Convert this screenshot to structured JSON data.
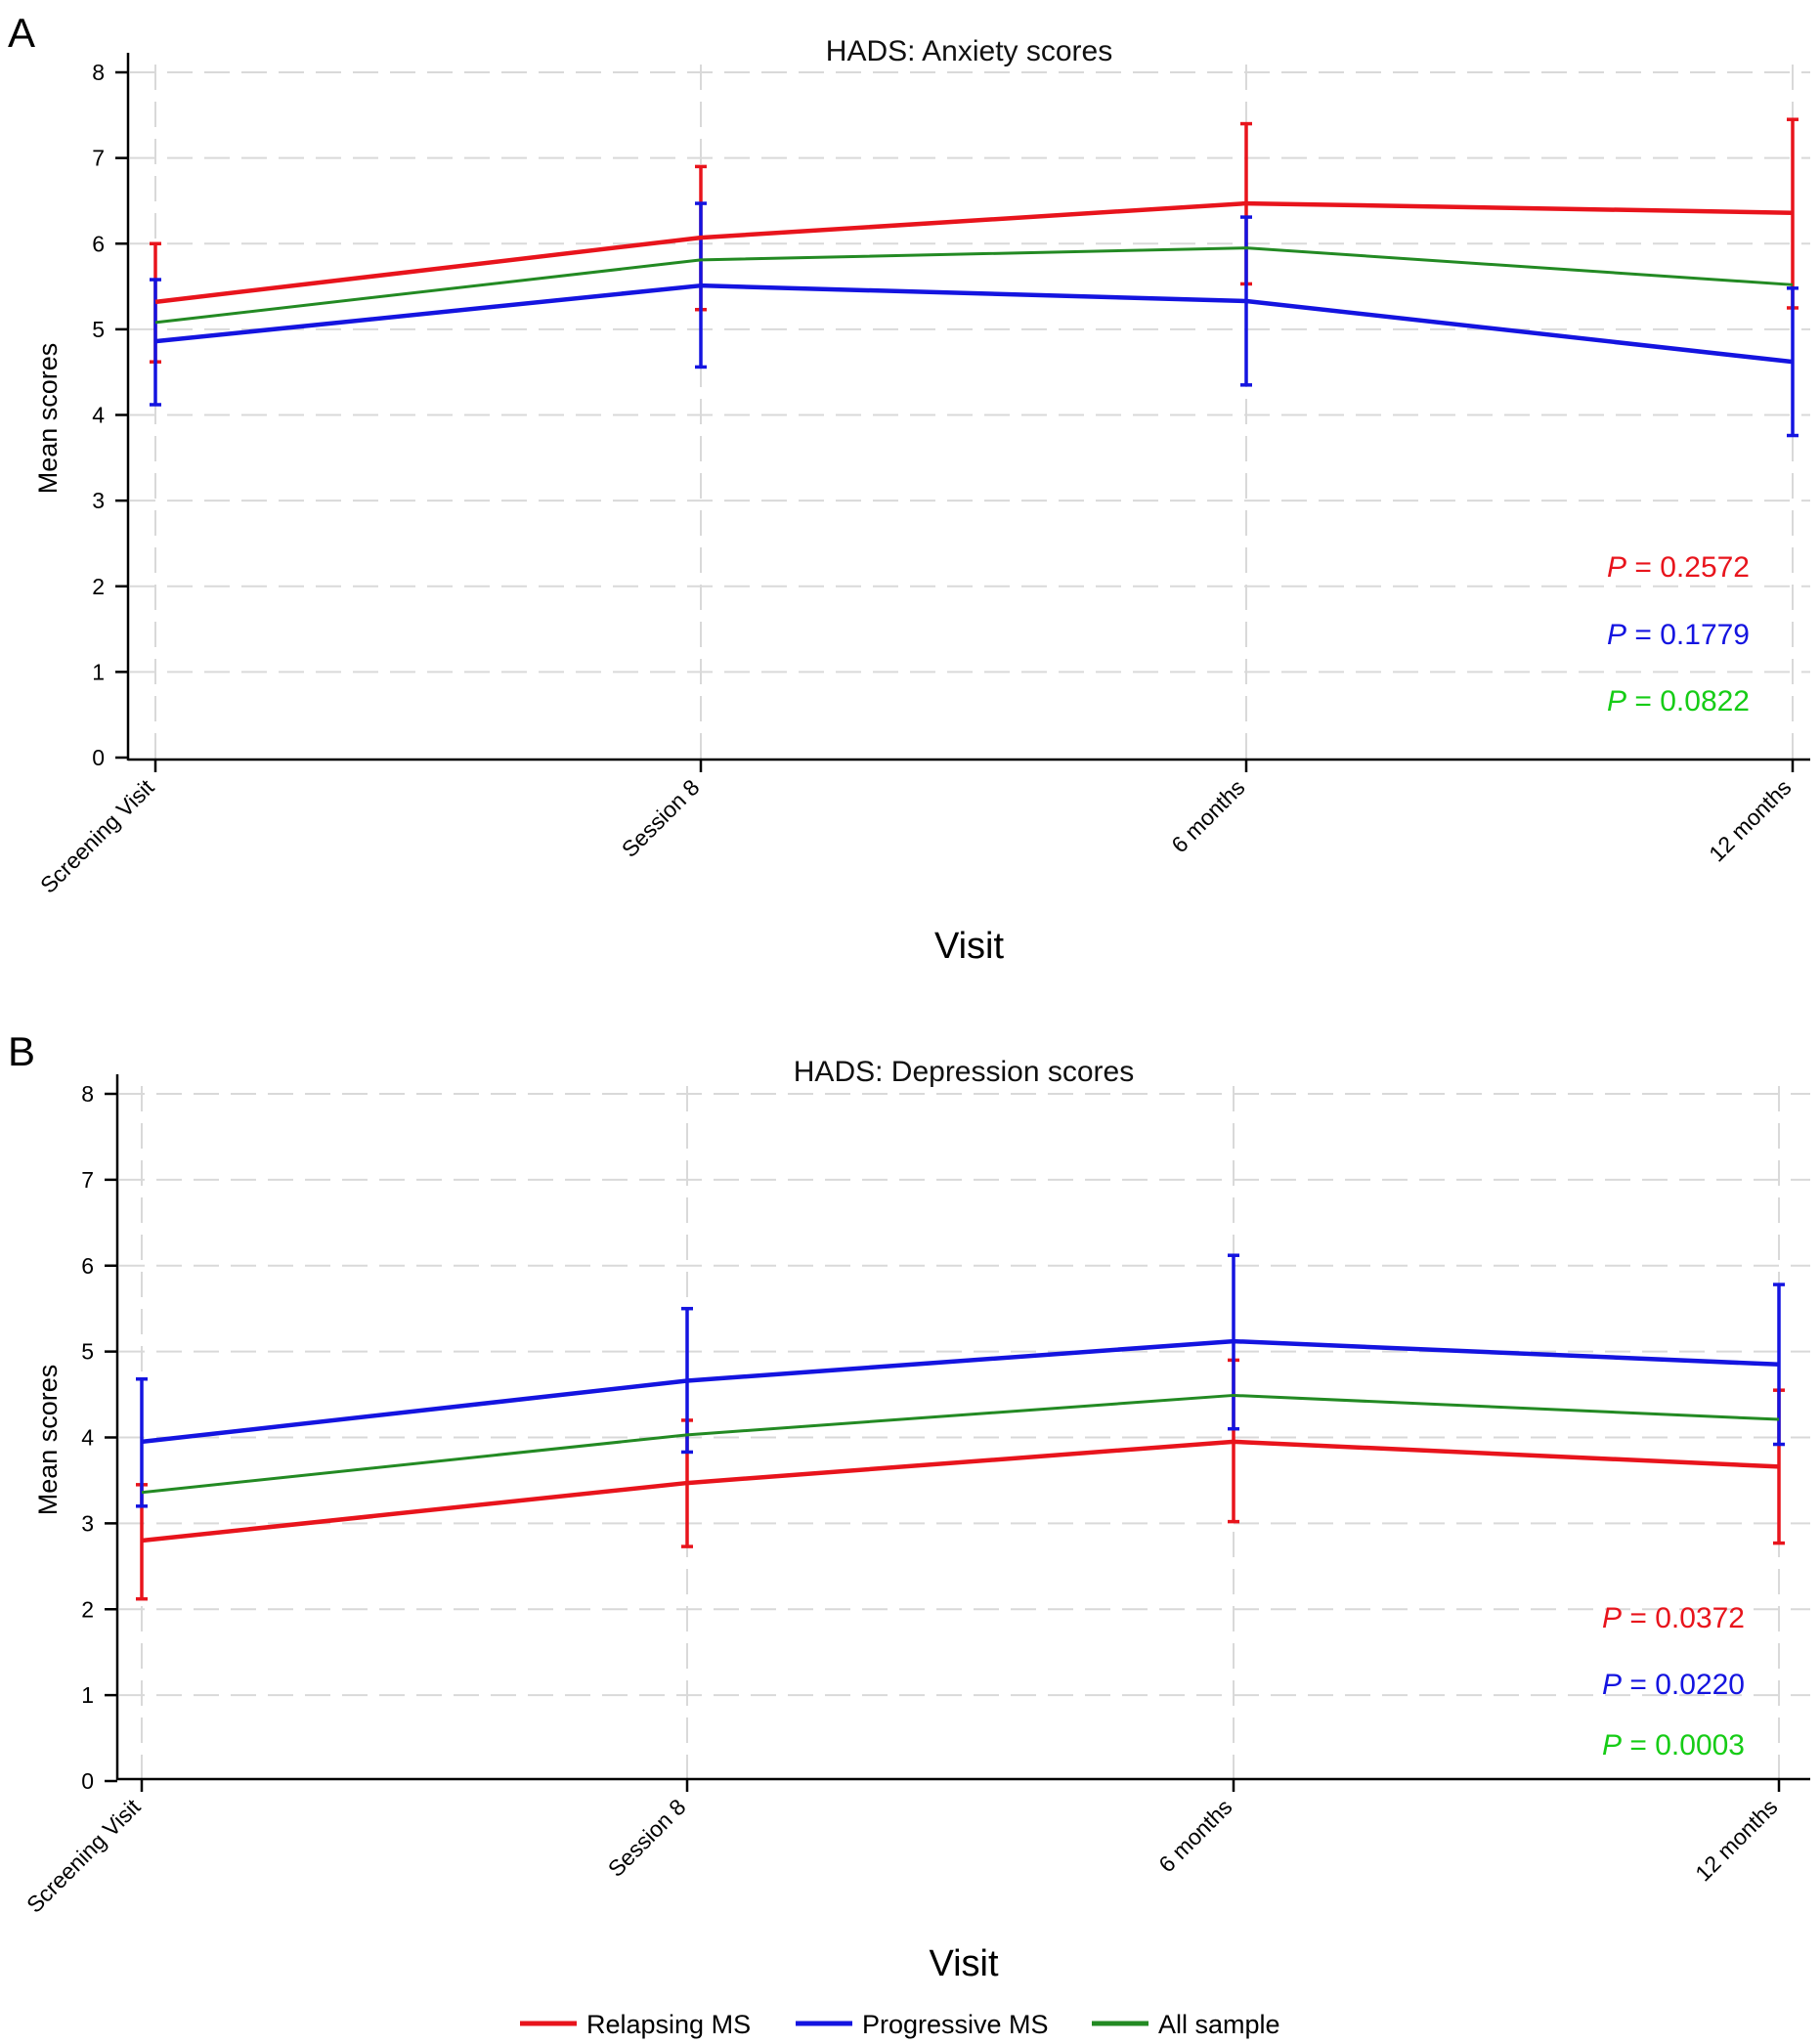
{
  "figure": {
    "legend": [
      {
        "name": "Relapsing MS",
        "color": "#e8141c"
      },
      {
        "name": "Progressive MS",
        "color": "#1414e0"
      },
      {
        "name": "All sample",
        "color": "#238a23"
      }
    ],
    "pvalue_colors": [
      "#e8141c",
      "#1414e0",
      "#16cc16"
    ]
  },
  "chart_data": [
    {
      "panel_label": "A",
      "type": "line",
      "title": "HADS: Anxiety scores",
      "xlabel": "Visit",
      "ylabel": "Mean scores",
      "categories": [
        "Screening Visit",
        "Session 8",
        "6 months",
        "12 months"
      ],
      "ylim": [
        0,
        8
      ],
      "yticks": [
        0,
        1,
        2,
        3,
        4,
        5,
        6,
        7,
        8
      ],
      "grid": true,
      "series": [
        {
          "name": "Relapsing MS",
          "values": [
            5.32,
            6.07,
            6.47,
            6.36
          ],
          "lower": [
            4.62,
            5.23,
            5.53,
            5.25
          ],
          "upper": [
            6.0,
            6.9,
            7.4,
            7.45
          ]
        },
        {
          "name": "Progressive MS",
          "values": [
            4.86,
            5.51,
            5.33,
            4.62
          ],
          "lower": [
            4.12,
            4.56,
            4.35,
            3.76
          ],
          "upper": [
            5.58,
            6.47,
            6.31,
            5.48
          ]
        },
        {
          "name": "All sample",
          "values": [
            5.08,
            5.81,
            5.95,
            5.52
          ]
        }
      ],
      "pvalue_prefix": "P",
      "pvalue_suffix": " = ",
      "pvalues": [
        "0.2572",
        "0.1779",
        "0.0822"
      ]
    },
    {
      "panel_label": "B",
      "type": "line",
      "title": "HADS: Depression scores",
      "xlabel": "Visit",
      "ylabel": "Mean scores",
      "categories": [
        "Screening Visit",
        "Session 8",
        "6 months",
        "12 months"
      ],
      "ylim": [
        0,
        8
      ],
      "yticks": [
        0,
        1,
        2,
        3,
        4,
        5,
        6,
        7,
        8
      ],
      "grid": true,
      "series": [
        {
          "name": "Relapsing MS",
          "values": [
            2.8,
            3.47,
            3.95,
            3.66
          ],
          "lower": [
            2.12,
            2.73,
            3.02,
            2.77
          ],
          "upper": [
            3.45,
            4.2,
            4.9,
            4.55
          ]
        },
        {
          "name": "Progressive MS",
          "values": [
            3.95,
            4.66,
            5.12,
            4.85
          ],
          "lower": [
            3.2,
            3.83,
            4.1,
            3.92
          ],
          "upper": [
            4.68,
            5.5,
            6.12,
            5.78
          ]
        },
        {
          "name": "All sample",
          "values": [
            3.36,
            4.03,
            4.49,
            4.21
          ]
        }
      ],
      "pvalue_prefix": "P",
      "pvalue_suffix": " = ",
      "pvalues": [
        "0.0372",
        "0.0220",
        "0.0003"
      ]
    }
  ]
}
